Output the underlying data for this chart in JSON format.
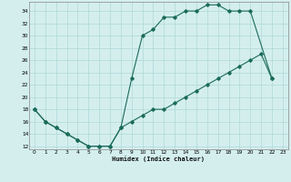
{
  "xlabel": "Humidex (Indice chaleur)",
  "xlim": [
    -0.5,
    23.5
  ],
  "ylim": [
    11.5,
    35.5
  ],
  "xticks": [
    0,
    1,
    2,
    3,
    4,
    5,
    6,
    7,
    8,
    9,
    10,
    11,
    12,
    13,
    14,
    15,
    16,
    17,
    18,
    19,
    20,
    21,
    22,
    23
  ],
  "yticks": [
    12,
    14,
    16,
    18,
    20,
    22,
    24,
    26,
    28,
    30,
    32,
    34
  ],
  "bg_color": "#d4eeee",
  "grid_color": "#b0d8d8",
  "line_color": "#1a6b5a",
  "line1_x": [
    0,
    1,
    2,
    3,
    4,
    5,
    6,
    7,
    8,
    9,
    10,
    11,
    12,
    13,
    14,
    15,
    16,
    17,
    18,
    19,
    20,
    22
  ],
  "line1_y": [
    18,
    16,
    15,
    14,
    13,
    12,
    12,
    12,
    15,
    23,
    30,
    31,
    33,
    33,
    34,
    34,
    35,
    35,
    34,
    34,
    34,
    23
  ],
  "line2_x": [
    0,
    1,
    2,
    3,
    4,
    5,
    6,
    7,
    8,
    9,
    10,
    11,
    12,
    13,
    14,
    15,
    16,
    17,
    18,
    19,
    20,
    21,
    22
  ],
  "line2_y": [
    18,
    16,
    15,
    14,
    13,
    12,
    12,
    12,
    15,
    16,
    17,
    18,
    18,
    19,
    20,
    21,
    22,
    23,
    24,
    25,
    26,
    27,
    23
  ]
}
